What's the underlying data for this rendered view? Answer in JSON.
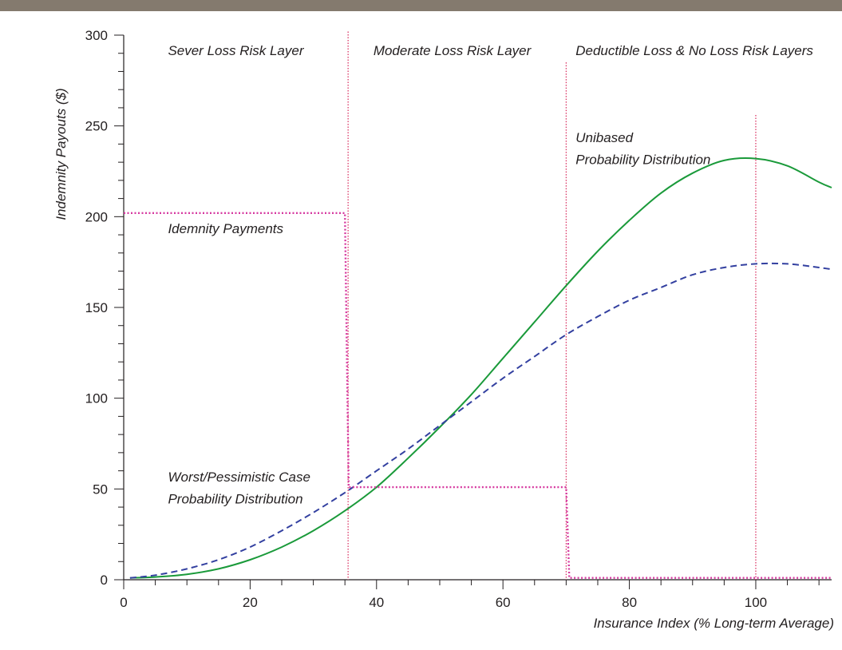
{
  "header_bar_color": "#847a6e",
  "chart_data": {
    "type": "line",
    "title": "",
    "xlabel": "Insurance Index (% Long-term Average)",
    "ylabel": "Indemnity Payouts ($)",
    "xlim": [
      0,
      112
    ],
    "ylim": [
      0,
      300
    ],
    "x_ticks": [
      0,
      20,
      40,
      60,
      80,
      100
    ],
    "x_minor_step": 5,
    "y_ticks": [
      0,
      50,
      100,
      150,
      200,
      250,
      300
    ],
    "y_minor_step": 10,
    "grid": false,
    "legend": "none",
    "series": [
      {
        "key": "unbiased",
        "style": "solid",
        "color": "#1a9a3a",
        "x": [
          1,
          5,
          10,
          15,
          20,
          25,
          30,
          35,
          40,
          45,
          50,
          55,
          60,
          65,
          70,
          75,
          80,
          85,
          90,
          95,
          100,
          105,
          110,
          112
        ],
        "y": [
          1,
          1.5,
          3,
          6,
          11,
          18,
          27,
          38,
          51,
          67,
          84,
          102,
          122,
          142,
          162,
          181,
          198,
          213,
          224,
          231,
          232,
          228,
          219,
          216
        ]
      },
      {
        "key": "pessimistic",
        "style": "dashed",
        "color": "#3340a0",
        "x": [
          1,
          5,
          10,
          15,
          20,
          25,
          30,
          35,
          40,
          45,
          50,
          55,
          60,
          65,
          70,
          75,
          80,
          85,
          90,
          95,
          100,
          105,
          110,
          112
        ],
        "y": [
          1,
          2.5,
          6,
          11,
          18,
          27,
          37,
          48,
          60,
          72,
          85,
          98,
          111,
          123,
          135,
          145,
          154,
          161,
          168,
          172,
          174,
          174,
          172,
          171
        ]
      },
      {
        "key": "payments",
        "style": "dotted",
        "color": "#d63aa0",
        "x": [
          0,
          35,
          35.6,
          70,
          70.5,
          112
        ],
        "y": [
          202,
          202,
          51,
          51,
          1,
          1
        ]
      }
    ],
    "vertical_lines": [
      {
        "x": 35.5,
        "y_top": 302,
        "y_bottom": 0,
        "color": "#d8285a"
      },
      {
        "x": 70,
        "y_top": 285,
        "y_bottom": 0,
        "color": "#d8285a"
      },
      {
        "x": 100,
        "y_top": 256,
        "y_bottom": 0,
        "color": "#d8285a"
      }
    ],
    "annotations": [
      {
        "text": "Sever Loss Risk Layer",
        "x": 7,
        "y": 289
      },
      {
        "text": "Moderate Loss Risk Layer",
        "x": 39.5,
        "y": 289
      },
      {
        "text": "Deductible Loss & No Loss Risk Layers",
        "x": 71.5,
        "y": 289
      },
      {
        "text": "Unibased",
        "x": 71.5,
        "y": 241
      },
      {
        "text": "Probability Distribution",
        "x": 71.5,
        "y": 229
      },
      {
        "text": "Idemnity Payments",
        "x": 7,
        "y": 191
      },
      {
        "text": "Worst/Pessimistic Case",
        "x": 7,
        "y": 54
      },
      {
        "text": "Probability Distribution",
        "x": 7,
        "y": 42
      }
    ]
  }
}
